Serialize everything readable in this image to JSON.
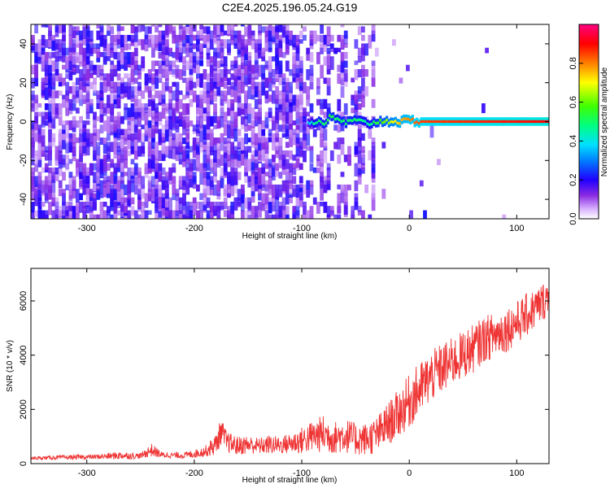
{
  "title": "C2E4.2025.196.05.24.G19",
  "colors": {
    "snr_line": "#ef3434",
    "spectrogram_bg": "#ffffff",
    "colormap": [
      "#ffffff",
      "#e6c8ff",
      "#9a4dff",
      "#6a00ff",
      "#1400ff",
      "#0050ff",
      "#00c8ff",
      "#00ff80",
      "#40ff00",
      "#ffff00",
      "#ff8000",
      "#ff0000",
      "#ff0080"
    ]
  },
  "chart_data": [
    {
      "type": "heatmap",
      "xlabel": "Height of straight line (km)",
      "ylabel": "Frequency (Hz)",
      "xlim": [
        -352,
        130
      ],
      "ylim": [
        -50,
        50
      ],
      "xticks": [
        -300,
        -200,
        -100,
        0,
        100
      ],
      "xtick_labels": [
        "-300",
        "-200",
        "-100",
        "0",
        "100"
      ],
      "yticks": [
        -40,
        -20,
        0,
        20,
        40
      ],
      "ytick_labels": [
        "-40",
        "-20",
        "0",
        "20",
        "40"
      ],
      "colorbar": {
        "label": "Normalized spectral amplitude",
        "range": [
          0,
          1
        ],
        "ticks": [
          0.0,
          0.2,
          0.4,
          0.6,
          0.8
        ],
        "tick_labels": [
          "0.0",
          "0.2",
          "0.4",
          "0.6",
          "0.8"
        ]
      },
      "regions": [
        {
          "x": [
            -352,
            -100
          ],
          "description": "broadband purple noise, amplitude ~0.1-0.25"
        },
        {
          "x": [
            -100,
            -35
          ],
          "description": "patchy noise plus emerging carrier near 0 Hz"
        },
        {
          "x": [
            -35,
            130
          ],
          "description": "clean carrier at ~0 Hz, amplitude ~0.9"
        }
      ],
      "carrier": [
        {
          "x": -95,
          "y": 0.5,
          "amp": 0.35
        },
        {
          "x": -90,
          "y": -1.5,
          "amp": 0.45
        },
        {
          "x": -85,
          "y": 0.5,
          "amp": 0.5
        },
        {
          "x": -80,
          "y": -1.0,
          "amp": 0.5
        },
        {
          "x": -75,
          "y": 2.0,
          "amp": 0.55
        },
        {
          "x": -70,
          "y": 1.5,
          "amp": 0.5
        },
        {
          "x": -60,
          "y": -0.5,
          "amp": 0.5
        },
        {
          "x": -50,
          "y": 0.5,
          "amp": 0.5
        },
        {
          "x": -40,
          "y": -1.0,
          "amp": 0.45
        },
        {
          "x": -30,
          "y": 0.0,
          "amp": 0.55
        },
        {
          "x": -20,
          "y": 0.3,
          "amp": 0.65
        },
        {
          "x": -10,
          "y": 0.0,
          "amp": 0.75
        },
        {
          "x": 0,
          "y": 0.5,
          "amp": 0.8
        },
        {
          "x": 10,
          "y": 0.0,
          "amp": 0.85
        },
        {
          "x": 130,
          "y": 0.0,
          "amp": 0.9
        }
      ]
    },
    {
      "type": "line",
      "xlabel": "Height of straight line (km)",
      "ylabel": "SNR (10 * v/v)",
      "xlim": [
        -352,
        130
      ],
      "ylim": [
        0,
        7200
      ],
      "xticks": [
        -300,
        -200,
        -100,
        0,
        100
      ],
      "xtick_labels": [
        "-300",
        "-200",
        "-100",
        "0",
        "100"
      ],
      "yticks": [
        0,
        2000,
        4000,
        6000
      ],
      "ytick_labels": [
        "0",
        "2000",
        "4000",
        "6000"
      ],
      "series": [
        {
          "x": [
            -352,
            -320,
            -290,
            -270,
            -250,
            -240,
            -230,
            -210,
            -200,
            -190,
            -180,
            -175,
            -170,
            -160,
            -150,
            -140,
            -130,
            -120,
            -110,
            -100,
            -90,
            -80,
            -70,
            -60,
            -50,
            -40,
            -30,
            -20,
            -10,
            0,
            10,
            20,
            30,
            40,
            50,
            60,
            70,
            80,
            90,
            100,
            110,
            120,
            130
          ],
          "y": [
            200,
            230,
            250,
            300,
            280,
            500,
            320,
            300,
            360,
            450,
            700,
            1200,
            800,
            650,
            700,
            650,
            700,
            680,
            750,
            850,
            1000,
            1100,
            950,
            1050,
            900,
            900,
            1050,
            1450,
            1850,
            2300,
            2750,
            3200,
            3500,
            3750,
            4000,
            4250,
            4600,
            4750,
            4950,
            5200,
            5500,
            5800,
            6200
          ],
          "band": [
            60,
            80,
            90,
            150,
            100,
            250,
            110,
            120,
            150,
            200,
            400,
            500,
            400,
            350,
            350,
            300,
            350,
            320,
            400,
            500,
            600,
            700,
            600,
            650,
            600,
            600,
            700,
            800,
            900,
            1000,
            1000,
            950,
            950,
            900,
            900,
            900,
            850,
            850,
            850,
            800,
            800,
            750,
            700
          ]
        }
      ]
    }
  ]
}
